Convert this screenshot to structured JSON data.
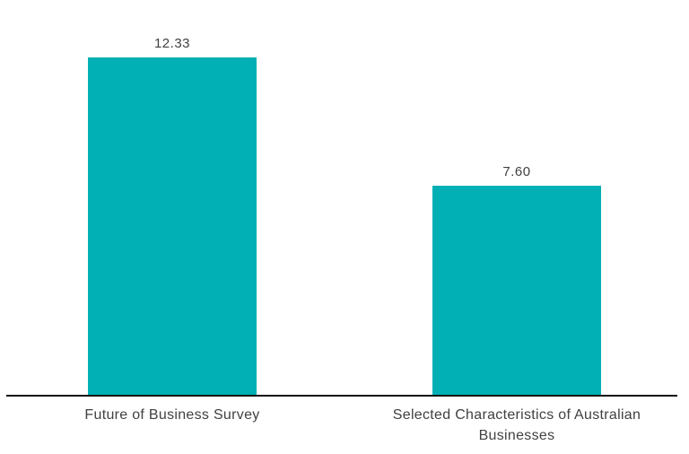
{
  "chart_data": {
    "type": "bar",
    "title": "",
    "xlabel": "",
    "ylabel": "",
    "categories": [
      "Future of Business Survey",
      "Selected Characteristics of Australian Businesses"
    ],
    "values": [
      12.33,
      7.6
    ],
    "value_labels": [
      "12.33",
      "7.60"
    ],
    "ylim": [
      0,
      13
    ],
    "grid": false,
    "legend": null,
    "y_axis_visible": false,
    "colors": {
      "bar": "#00b0b5",
      "text": "#414141",
      "axis": "#111111",
      "background": "#ffffff"
    }
  }
}
